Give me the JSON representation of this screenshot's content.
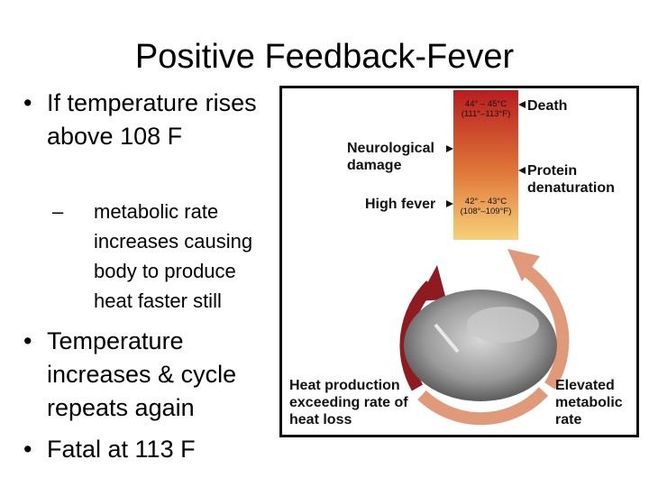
{
  "slide": {
    "title": "Positive Feedback-Fever",
    "bullets": [
      {
        "text": "If temperature rises above 108 F"
      },
      {
        "sub": "metabolic rate increases causing body to produce heat faster still"
      },
      {
        "text": "Temperature increases & cycle repeats again"
      },
      {
        "text": "Fatal at 113 F"
      }
    ]
  },
  "figure": {
    "labels": {
      "death": "Death",
      "neuro": "Neurological damage",
      "protein": "Protein denaturation",
      "high_fever": "High fever",
      "heat_production": "Heat production exceeding rate of heat loss",
      "elevated": "Elevated metabolic rate"
    },
    "temps": {
      "top_c": "44° – 45°C",
      "top_f": "(111°–113°F)",
      "mid_c": "42° – 43°C",
      "mid_f": "(108°–109°F)"
    },
    "colors": {
      "bar_top": "#b81d1f",
      "bar_mid": "#e0783a",
      "bar_bottom": "#f6d27a",
      "arrow_dark": "#8f1a1f",
      "arrow_light": "#e09a7a"
    }
  }
}
